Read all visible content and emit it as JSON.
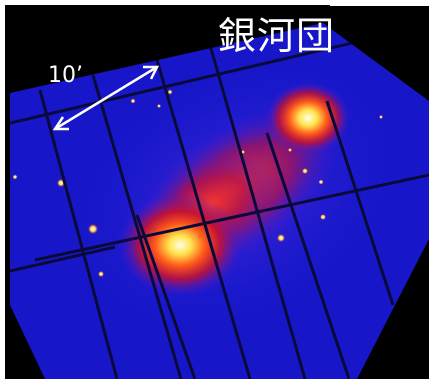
{
  "image": {
    "description_name": "x-ray-image-of-galaxy-cluster",
    "title": "銀河団",
    "scale_bar_label": "10’",
    "colors": {
      "background": "#000000",
      "sky": "#1a1ad6",
      "glow_mid": "#e11a1a",
      "glow_hot": "#ffff6a",
      "text": "#ffffff"
    }
  }
}
